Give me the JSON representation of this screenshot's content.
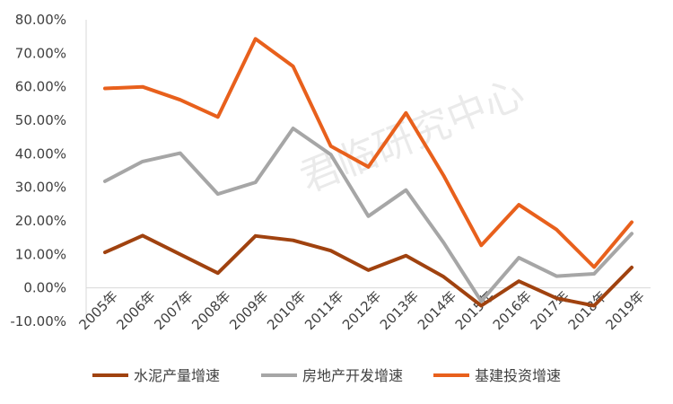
{
  "chart_data": {
    "type": "line",
    "categories": [
      "2005年",
      "2006年",
      "2007年",
      "2008年",
      "2009年",
      "2010年",
      "2011年",
      "2012年",
      "2013年",
      "2014年",
      "2015年",
      "2016年",
      "2017年",
      "2018年",
      "2019年"
    ],
    "series": [
      {
        "name": "水泥产量增速",
        "color": "#A0420F",
        "values": [
          10.6,
          15.6,
          10.0,
          4.4,
          15.5,
          14.2,
          11.1,
          5.3,
          9.6,
          3.3,
          -5.3,
          2.0,
          -3.1,
          -5.3,
          6.1
        ]
      },
      {
        "name": "房地产开发增速",
        "color": "#A6A6A6",
        "values": [
          31.8,
          37.7,
          40.2,
          28.0,
          31.5,
          47.6,
          39.8,
          21.4,
          29.2,
          13.5,
          -4.0,
          9.0,
          3.5,
          4.2,
          16.2
        ]
      },
      {
        "name": "基建投资增速",
        "color": "#E8601C",
        "values": [
          59.5,
          60.0,
          56.1,
          51.0,
          74.3,
          66.1,
          42.3,
          36.1,
          52.2,
          33.5,
          12.7,
          24.8,
          17.4,
          6.2,
          19.6
        ]
      }
    ],
    "yticks": [
      "-10.00%",
      "0.00%",
      "10.00%",
      "20.00%",
      "30.00%",
      "40.00%",
      "50.00%",
      "60.00%",
      "70.00%",
      "80.00%"
    ],
    "ylim": [
      -10,
      80
    ],
    "legend_position": "bottom",
    "watermark": "君临研究中心"
  }
}
